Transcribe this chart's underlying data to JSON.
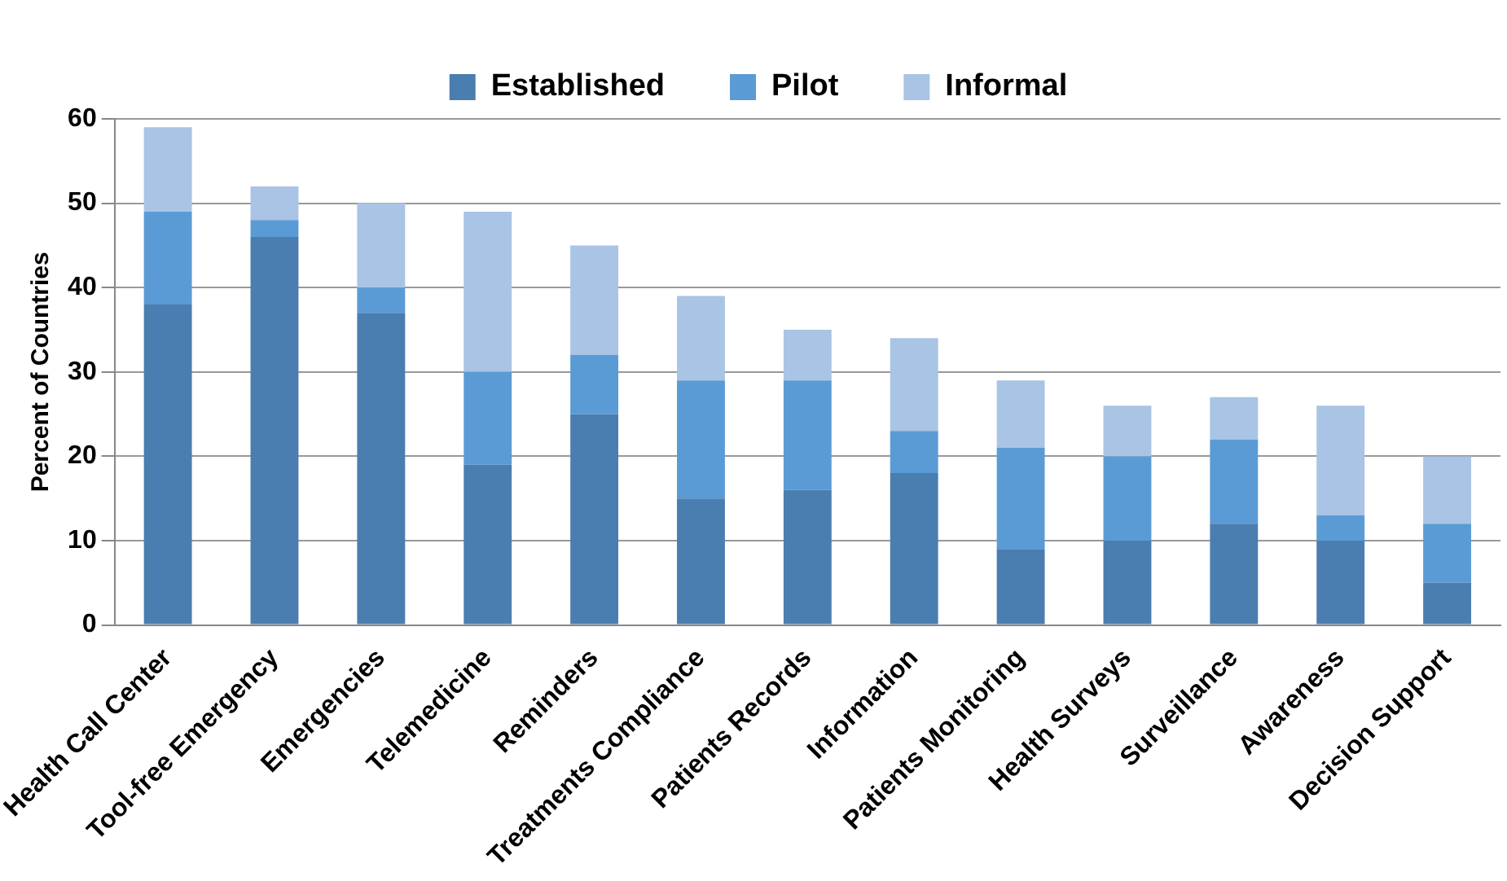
{
  "chart_data": {
    "type": "bar",
    "stacked": true,
    "ylabel": "Percent of Countries",
    "categories": [
      "Health Call Center",
      "Tool-free Emergency",
      "Emergencies",
      "Telemedicine",
      "Reminders",
      "Treatments Compliance",
      "Patients Records",
      "Information",
      "Patients Monitoring",
      "Health Surveys",
      "Surveillance",
      "Awareness",
      "Decision Support"
    ],
    "series": [
      {
        "name": "Established",
        "color": "#4a7eb0",
        "values": [
          38,
          46,
          37,
          19,
          25,
          15,
          16,
          18,
          9,
          10,
          12,
          10,
          5
        ]
      },
      {
        "name": "Pilot",
        "color": "#5b9bd5",
        "values": [
          11,
          2,
          3,
          11,
          7,
          14,
          13,
          5,
          12,
          10,
          10,
          3,
          7
        ]
      },
      {
        "name": "Informal",
        "color": "#a9c4e4",
        "values": [
          10,
          4,
          10,
          19,
          13,
          10,
          6,
          11,
          8,
          6,
          5,
          13,
          8
        ]
      }
    ],
    "ylim": [
      0,
      60
    ],
    "yticks": [
      0,
      10,
      20,
      30,
      40,
      50,
      60
    ],
    "grid": "y",
    "legend": "top"
  }
}
